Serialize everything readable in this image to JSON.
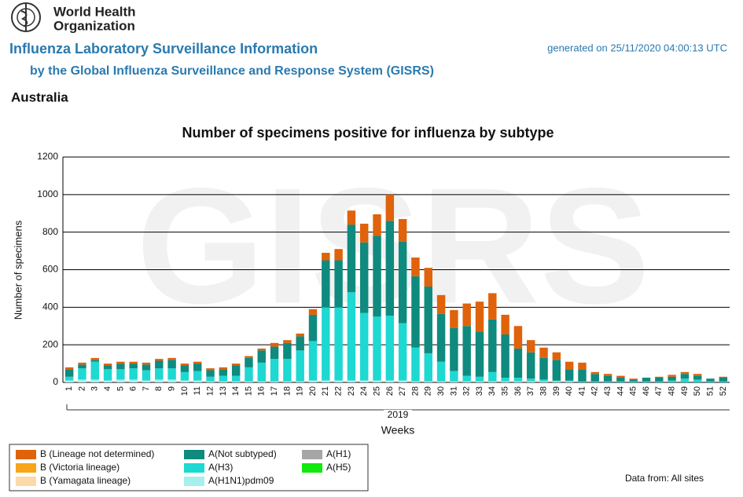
{
  "header": {
    "org_line1": "World Health",
    "org_line2": "Organization",
    "title": "Influenza Laboratory Surveillance Information",
    "subtitle": "by the Global Influenza Surveillance and Response System (GISRS)",
    "generated": "generated on 25/11/2020 04:00:13 UTC",
    "country": "Australia"
  },
  "watermark": "GISRS",
  "footer": "Data from: All sites",
  "chart_data": {
    "type": "stacked-bar",
    "title": "Number of specimens positive for influenza by subtype",
    "y_label": "Number of specimens",
    "x_label": "Weeks",
    "x_group": "2019",
    "categories": [
      "1",
      "2",
      "3",
      "4",
      "5",
      "6",
      "7",
      "8",
      "9",
      "10",
      "11",
      "12",
      "13",
      "14",
      "15",
      "16",
      "17",
      "18",
      "19",
      "20",
      "21",
      "22",
      "23",
      "24",
      "25",
      "26",
      "27",
      "28",
      "29",
      "30",
      "31",
      "32",
      "33",
      "34",
      "35",
      "36",
      "37",
      "38",
      "39",
      "40",
      "41",
      "42",
      "43",
      "44",
      "45",
      "46",
      "47",
      "48",
      "49",
      "50",
      "51",
      "52"
    ],
    "ylim": [
      0,
      1200
    ],
    "yticks": [
      0,
      200,
      400,
      600,
      800,
      1000,
      1200
    ],
    "grid": true,
    "series": [
      {
        "name": "A(H1N1)pdm09",
        "color": "#a5f0ec",
        "values": [
          10,
          15,
          15,
          10,
          15,
          15,
          10,
          15,
          15,
          10,
          10,
          5,
          5,
          5,
          5,
          5,
          5,
          5,
          5,
          10,
          10,
          10,
          10,
          10,
          10,
          10,
          10,
          5,
          5,
          5,
          5,
          5,
          5,
          5,
          5,
          5,
          5,
          5,
          5,
          5,
          0,
          0,
          0,
          0,
          0,
          0,
          0,
          0,
          0,
          0,
          0,
          0
        ]
      },
      {
        "name": "A(H3)",
        "color": "#1ed8d2",
        "values": [
          20,
          60,
          95,
          60,
          55,
          60,
          55,
          60,
          60,
          45,
          50,
          25,
          30,
          30,
          75,
          100,
          120,
          120,
          165,
          210,
          390,
          390,
          470,
          360,
          340,
          345,
          305,
          180,
          150,
          105,
          55,
          30,
          25,
          50,
          20,
          20,
          15,
          10,
          5,
          5,
          5,
          5,
          5,
          5,
          5,
          5,
          5,
          10,
          20,
          15,
          5,
          5
        ]
      },
      {
        "name": "A(Not subtyped)",
        "color": "#0f8a7e",
        "values": [
          40,
          20,
          10,
          20,
          30,
          25,
          30,
          40,
          45,
          35,
          40,
          35,
          35,
          55,
          50,
          65,
          65,
          85,
          75,
          140,
          250,
          250,
          360,
          375,
          430,
          505,
          435,
          380,
          355,
          255,
          230,
          265,
          240,
          280,
          230,
          155,
          140,
          115,
          110,
          60,
          65,
          40,
          30,
          20,
          10,
          20,
          20,
          20,
          25,
          20,
          15,
          20
        ]
      },
      {
        "name": "A(H1)",
        "color": "#a6a6a6",
        "values": [
          0,
          0,
          0,
          0,
          0,
          0,
          0,
          0,
          0,
          0,
          0,
          0,
          0,
          0,
          0,
          0,
          0,
          0,
          0,
          0,
          0,
          0,
          0,
          0,
          0,
          0,
          0,
          0,
          0,
          0,
          0,
          0,
          0,
          0,
          0,
          0,
          0,
          0,
          0,
          0,
          0,
          0,
          0,
          0,
          0,
          0,
          0,
          0,
          0,
          0,
          0,
          0
        ]
      },
      {
        "name": "A(H5)",
        "color": "#13e80f",
        "values": [
          0,
          0,
          0,
          0,
          0,
          0,
          0,
          0,
          0,
          0,
          0,
          0,
          0,
          0,
          0,
          0,
          0,
          0,
          0,
          0,
          0,
          0,
          0,
          0,
          0,
          0,
          0,
          0,
          0,
          0,
          0,
          0,
          0,
          0,
          0,
          0,
          0,
          0,
          0,
          0,
          0,
          0,
          0,
          0,
          0,
          0,
          0,
          0,
          0,
          0,
          0,
          0
        ]
      },
      {
        "name": "B (Yamagata lineage)",
        "color": "#fcd9a8",
        "values": [
          0,
          0,
          0,
          0,
          0,
          0,
          0,
          0,
          0,
          0,
          0,
          0,
          0,
          0,
          0,
          0,
          0,
          0,
          0,
          0,
          0,
          0,
          0,
          0,
          0,
          0,
          0,
          0,
          0,
          0,
          0,
          0,
          0,
          0,
          0,
          0,
          0,
          0,
          0,
          0,
          0,
          0,
          0,
          0,
          0,
          0,
          0,
          0,
          0,
          0,
          0,
          0
        ]
      },
      {
        "name": "B (Victoria lineage)",
        "color": "#f8a51c",
        "values": [
          0,
          0,
          0,
          0,
          0,
          0,
          0,
          0,
          0,
          0,
          0,
          0,
          0,
          0,
          0,
          0,
          0,
          0,
          0,
          0,
          0,
          0,
          0,
          0,
          0,
          0,
          0,
          0,
          0,
          0,
          0,
          0,
          0,
          0,
          0,
          0,
          0,
          0,
          0,
          0,
          0,
          0,
          0,
          0,
          0,
          0,
          0,
          0,
          0,
          0,
          0,
          0
        ]
      },
      {
        "name": "B (Lineage not determined)",
        "color": "#e0620a",
        "values": [
          10,
          10,
          10,
          10,
          10,
          10,
          10,
          10,
          10,
          10,
          10,
          10,
          10,
          10,
          10,
          10,
          20,
          15,
          15,
          30,
          40,
          60,
          75,
          100,
          115,
          140,
          120,
          100,
          100,
          100,
          95,
          120,
          160,
          140,
          105,
          120,
          65,
          55,
          40,
          40,
          35,
          10,
          10,
          10,
          5,
          0,
          5,
          10,
          10,
          10,
          0,
          5
        ]
      }
    ]
  }
}
